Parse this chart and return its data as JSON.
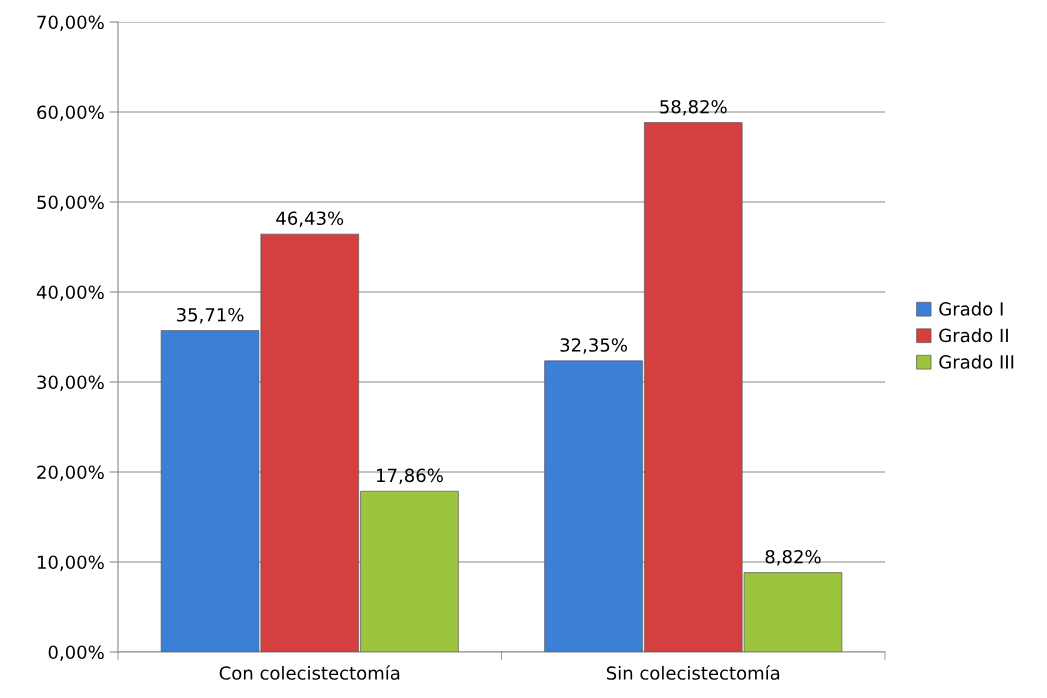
{
  "chart_data": {
    "type": "bar",
    "categories": [
      "Con colecistectomía",
      "Sin colecistectomía"
    ],
    "series": [
      {
        "name": "Grado I",
        "color": "#3c7fd6",
        "values": [
          35.71,
          32.35
        ],
        "value_labels": [
          "35,71%",
          "32,35%"
        ]
      },
      {
        "name": "Grado II",
        "color": "#d63f3f",
        "values": [
          46.43,
          58.82
        ],
        "value_labels": [
          "46,43%",
          "58,82%"
        ]
      },
      {
        "name": "Grado III",
        "color": "#9cc43e",
        "values": [
          17.86,
          8.82
        ],
        "value_labels": [
          "17,86%",
          "8,82%"
        ]
      }
    ],
    "ylim": [
      0,
      70
    ],
    "yticks": [
      {
        "value": 0,
        "label": "0,00%"
      },
      {
        "value": 10,
        "label": "10,00%"
      },
      {
        "value": 20,
        "label": "20,00%"
      },
      {
        "value": 30,
        "label": "30,00%"
      },
      {
        "value": 40,
        "label": "40,00%"
      },
      {
        "value": 50,
        "label": "50,00%"
      },
      {
        "value": 60,
        "label": "60,00%"
      },
      {
        "value": 70,
        "label": "70,00%"
      }
    ],
    "grid": "y",
    "legend": "right"
  }
}
